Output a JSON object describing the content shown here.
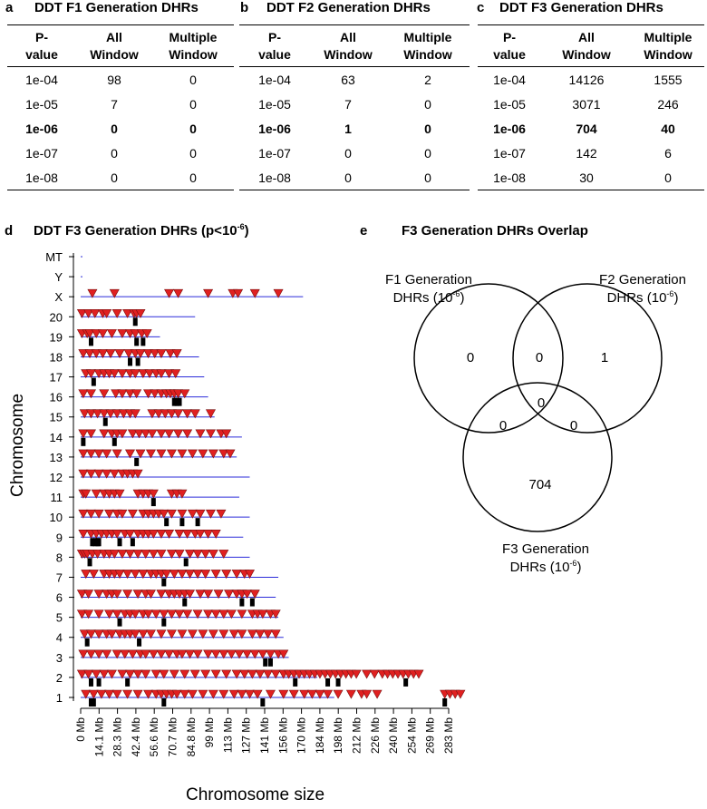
{
  "panels": {
    "a": {
      "letter": "a",
      "title": "DDT F1 Generation DHRs"
    },
    "b": {
      "letter": "b",
      "title": "DDT F2 Generation DHRs"
    },
    "c": {
      "letter": "c",
      "title": "DDT F3 Generation DHRs"
    },
    "d": {
      "letter": "d",
      "title_main": "DDT F3 Generation DHRs (p<10",
      "title_sup": "-6",
      "title_end": ")"
    },
    "e": {
      "letter": "e",
      "title": "F3 Generation DHRs Overlap"
    }
  },
  "table_headers": {
    "pvalue": [
      "P-",
      "value"
    ],
    "all": [
      "All",
      "Window"
    ],
    "multiple": [
      "Multiple",
      "Window"
    ]
  },
  "tables": {
    "a": [
      [
        "1e-04",
        "98",
        "0"
      ],
      [
        "1e-05",
        "7",
        "0"
      ],
      [
        "1e-06",
        "0",
        "0"
      ],
      [
        "1e-07",
        "0",
        "0"
      ],
      [
        "1e-08",
        "0",
        "0"
      ]
    ],
    "b": [
      [
        "1e-04",
        "63",
        "2"
      ],
      [
        "1e-05",
        "7",
        "0"
      ],
      [
        "1e-06",
        "1",
        "0"
      ],
      [
        "1e-07",
        "0",
        "0"
      ],
      [
        "1e-08",
        "0",
        "0"
      ]
    ],
    "c": [
      [
        "1e-04",
        "14126",
        "1555"
      ],
      [
        "1e-05",
        "3071",
        "246"
      ],
      [
        "1e-06",
        "704",
        "40"
      ],
      [
        "1e-07",
        "142",
        "6"
      ],
      [
        "1e-08",
        "30",
        "0"
      ]
    ]
  },
  "chart_data": {
    "type": "scatter",
    "ylabel": "Chromosome",
    "xlabel": "Chromosome size",
    "chromosomes": [
      "MT",
      "Y",
      "X",
      "20",
      "19",
      "18",
      "17",
      "16",
      "15",
      "14",
      "13",
      "12",
      "11",
      "10",
      "9",
      "8",
      "7",
      "6",
      "5",
      "4",
      "3",
      "2",
      "1"
    ],
    "chromosome_length_mb": [
      0.016,
      1,
      171,
      88,
      61,
      91,
      95,
      98,
      103,
      124,
      120,
      130,
      122,
      130,
      125,
      130,
      152,
      150,
      152,
      156,
      160,
      182,
      195
    ],
    "x_ticks_mb": [
      "0 Mb",
      "14.1 Mb",
      "28.3 Mb",
      "42.4 Mb",
      "56.6 Mb",
      "70.7 Mb",
      "84.8 Mb",
      "99 Mb",
      "113 Mb",
      "127 Mb",
      "141 Mb",
      "156 Mb",
      "170 Mb",
      "184 Mb",
      "198 Mb",
      "212 Mb",
      "226 Mb",
      "240 Mb",
      "254 Mb",
      "269 Mb",
      "283 Mb"
    ],
    "xlim": [
      0,
      283
    ],
    "marker_colors": {
      "all_window": "#e02020",
      "multiple_window": "#000000",
      "chromosome_line": "#2b2bd9"
    },
    "dhr_positions_mb": {
      "X": [
        9,
        26,
        68,
        75,
        98,
        117,
        121,
        134,
        152
      ],
      "20": [
        1,
        6,
        11,
        17,
        20,
        28,
        36,
        41,
        43,
        46
      ],
      "19": [
        1,
        5,
        7,
        12,
        17,
        24,
        32,
        38,
        42,
        47,
        51
      ],
      "18": [
        2,
        7,
        12,
        17,
        23,
        30,
        37,
        42,
        46,
        52,
        57,
        62,
        69,
        74
      ],
      "17": [
        4,
        8,
        14,
        18,
        22,
        26,
        32,
        38,
        42,
        48,
        53,
        58,
        62,
        68,
        73
      ],
      "16": [
        2,
        8,
        18,
        27,
        32,
        38,
        43,
        52,
        57,
        62,
        66,
        69,
        72,
        75,
        80
      ],
      "15": [
        3,
        8,
        13,
        18,
        23,
        28,
        33,
        38,
        42,
        55,
        60,
        65,
        70,
        75,
        82,
        88,
        100
      ],
      "14": [
        2,
        8,
        18,
        24,
        28,
        32,
        40,
        45,
        50,
        55,
        62,
        68,
        75,
        82,
        92,
        100,
        108,
        112
      ],
      "13": [
        2,
        8,
        14,
        20,
        28,
        38,
        46,
        54,
        62,
        70,
        78,
        86,
        94,
        102,
        110,
        115
      ],
      "12": [
        2,
        8,
        14,
        20,
        26,
        32,
        36,
        40,
        44
      ],
      "11": [
        2,
        4,
        12,
        18,
        22,
        26,
        30,
        44,
        48,
        52,
        56,
        70,
        74,
        78
      ],
      "10": [
        2,
        8,
        14,
        22,
        28,
        32,
        40,
        48,
        52,
        56,
        60,
        64,
        70,
        78,
        86,
        92,
        100,
        108
      ],
      "9": [
        2,
        8,
        12,
        16,
        20,
        24,
        28,
        34,
        38,
        44,
        48,
        52,
        56,
        62,
        68,
        76,
        82,
        88,
        92,
        98,
        104
      ],
      "8": [
        1,
        3,
        5,
        9,
        13,
        18,
        22,
        26,
        32,
        38,
        44,
        50,
        56,
        62,
        70,
        76,
        84,
        90,
        96,
        102,
        110
      ],
      "7": [
        4,
        10,
        18,
        22,
        26,
        30,
        36,
        42,
        48,
        54,
        58,
        62,
        66,
        72,
        78,
        84,
        90,
        96,
        104,
        112,
        120,
        126,
        130
      ],
      "6": [
        1,
        6,
        14,
        20,
        24,
        28,
        36,
        44,
        50,
        54,
        62,
        68,
        72,
        76,
        80,
        84,
        92,
        98,
        106,
        114,
        120,
        124,
        128,
        134
      ],
      "5": [
        1,
        6,
        14,
        22,
        28,
        34,
        38,
        42,
        48,
        52,
        58,
        64,
        70,
        76,
        82,
        90,
        98,
        104,
        110,
        116,
        124,
        132,
        136,
        140,
        146,
        150
      ],
      "4": [
        3,
        8,
        14,
        20,
        24,
        30,
        34,
        38,
        42,
        48,
        54,
        62,
        70,
        78,
        86,
        94,
        102,
        110,
        118,
        124,
        132,
        138,
        144,
        150
      ],
      "3": [
        2,
        8,
        14,
        20,
        28,
        34,
        40,
        46,
        50,
        56,
        62,
        68,
        74,
        78,
        84,
        90,
        98,
        104,
        110,
        116,
        122,
        128,
        134,
        140,
        146,
        152,
        156
      ],
      "2": [
        1,
        6,
        12,
        18,
        24,
        32,
        38,
        44,
        50,
        58,
        64,
        72,
        80,
        88,
        96,
        104,
        112,
        120,
        126,
        132,
        138,
        144,
        150,
        156,
        160,
        164,
        168,
        172,
        176,
        180,
        184,
        188,
        192,
        196,
        200,
        204,
        208,
        212,
        220,
        226,
        232,
        236,
        240,
        244,
        248,
        252,
        256,
        260
      ],
      "1": [
        4,
        10,
        16,
        22,
        28,
        36,
        44,
        52,
        58,
        62,
        66,
        70,
        74,
        80,
        86,
        94,
        102,
        110,
        118,
        124,
        130,
        136,
        146,
        156,
        164,
        172,
        178,
        184,
        190,
        198,
        208,
        216,
        220,
        228,
        280,
        284,
        288,
        292
      ]
    },
    "multi_window_positions_mb": {
      "20": [
        42
      ],
      "19": [
        8,
        43,
        48
      ],
      "18": [
        38,
        44
      ],
      "17": [
        10
      ],
      "16": [
        72,
        74,
        76
      ],
      "15": [
        19
      ],
      "14": [
        2,
        26
      ],
      "13": [
        43
      ],
      "11": [
        56
      ],
      "10": [
        66,
        78,
        90
      ],
      "9": [
        9,
        11,
        13,
        14,
        30,
        40
      ],
      "8": [
        7,
        81
      ],
      "7": [
        64
      ],
      "6": [
        80,
        124,
        132
      ],
      "5": [
        30,
        64
      ],
      "4": [
        5,
        45
      ],
      "3": [
        142,
        146
      ],
      "2": [
        8,
        14,
        36,
        165,
        190,
        198,
        250
      ],
      "1": [
        8,
        10,
        64,
        140,
        280
      ]
    }
  },
  "venn": {
    "labels": {
      "f1": [
        "F1 Generation",
        "DHRs (10",
        ")"
      ],
      "f2": [
        "F2 Generation",
        "DHRs (10",
        ")"
      ],
      "f3": [
        "F3 Generation",
        "DHRs (10",
        ")"
      ],
      "sup": "-6"
    },
    "counts": {
      "f1_only": "0",
      "f2_only": "1",
      "f3_only": "704",
      "f1_f2": "0",
      "f1_f3": "0",
      "f2_f3": "0",
      "all": "0"
    }
  }
}
